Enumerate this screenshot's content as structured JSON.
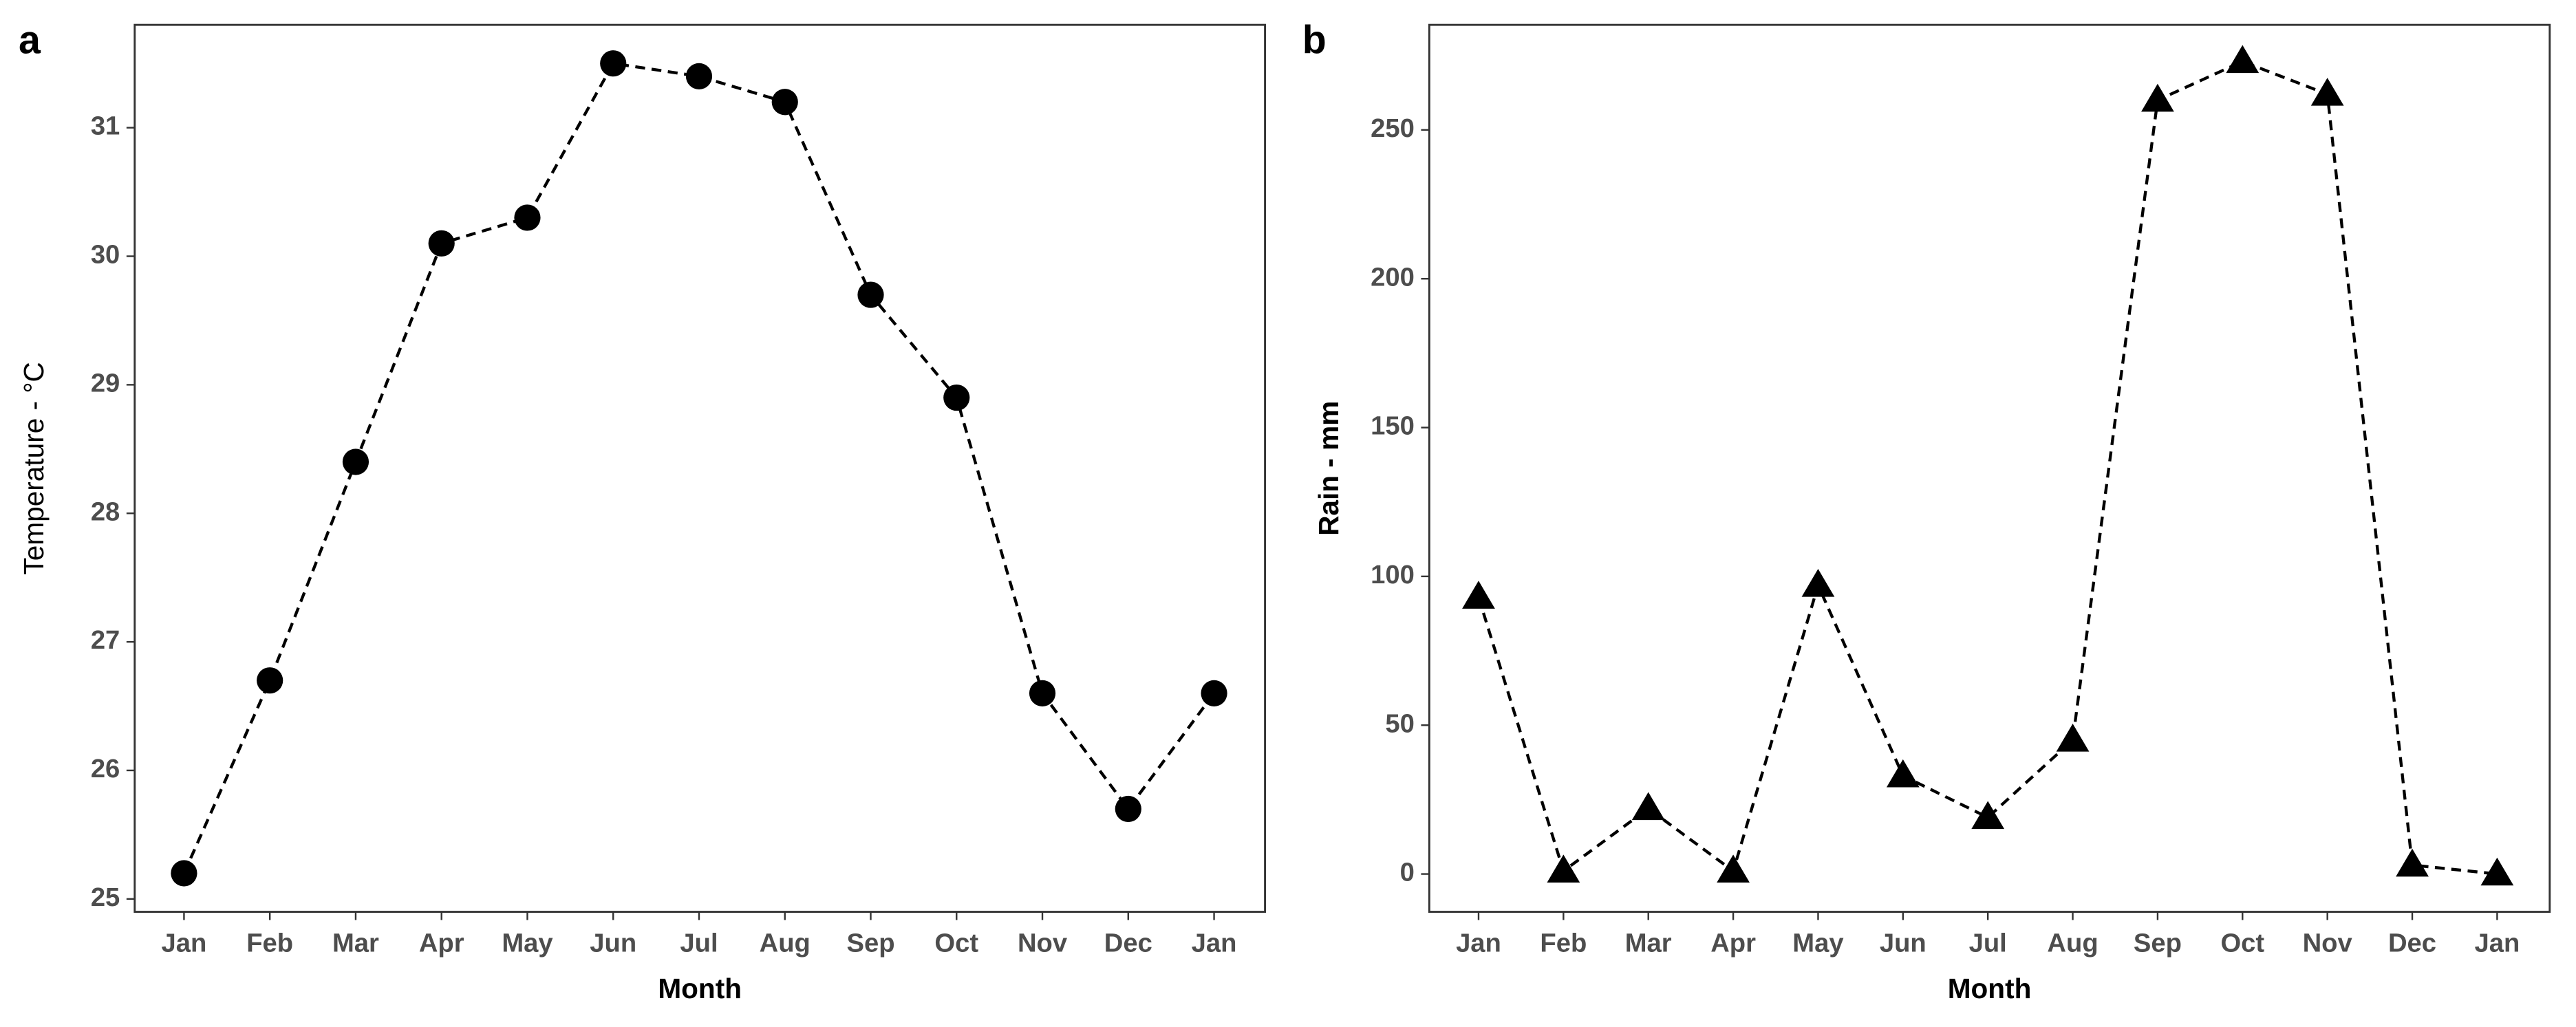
{
  "chart_data": [
    {
      "type": "line",
      "panel_label": "a",
      "x_label": "Month",
      "y_label": "Temperature - °C",
      "categories": [
        "Jan",
        "Feb",
        "Mar",
        "Apr",
        "May",
        "Jun",
        "Jul",
        "Aug",
        "Sep",
        "Oct",
        "Nov",
        "Dec",
        "Jan"
      ],
      "values": [
        25.2,
        26.7,
        28.4,
        30.1,
        30.3,
        31.5,
        31.4,
        31.2,
        29.7,
        28.9,
        26.6,
        25.7,
        26.6
      ],
      "color": "#000000",
      "marker": "circle",
      "line_style": "dashed",
      "ylim": [
        24.9,
        31.8
      ],
      "yticks": [
        25,
        26,
        27,
        28,
        29,
        30,
        31
      ],
      "grid": false
    },
    {
      "type": "line",
      "panel_label": "b",
      "x_label": "Month",
      "y_label": "Rain - mm",
      "categories": [
        "Jan",
        "Feb",
        "Mar",
        "Apr",
        "May",
        "Jun",
        "Jul",
        "Aug",
        "Sep",
        "Oct",
        "Nov",
        "Dec",
        "Jan"
      ],
      "values": [
        93,
        1,
        22,
        1,
        97,
        33,
        19,
        45,
        260,
        273,
        262,
        3,
        0
      ],
      "color": "#000000",
      "marker": "triangle",
      "line_style": "dashed",
      "ylim": [
        -12.7,
        285.3
      ],
      "yticks": [
        0,
        50,
        100,
        150,
        200,
        250
      ],
      "grid": false
    }
  ]
}
